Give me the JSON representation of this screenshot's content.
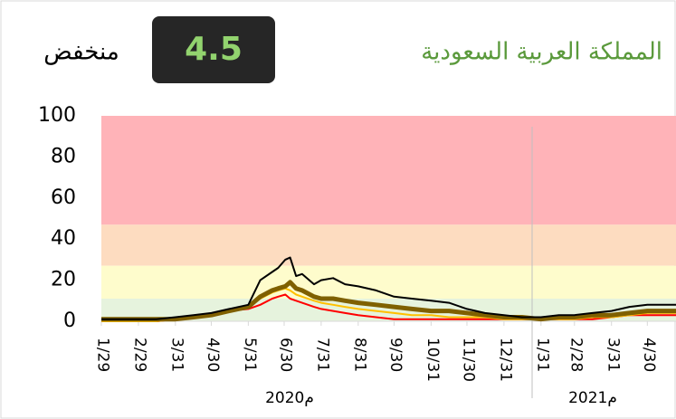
{
  "chart_data": {
    "type": "line",
    "title": "المملكة العربية السعودية",
    "indicator": {
      "value": 4.5,
      "label": "منخفض"
    },
    "year_labels": [
      "2020م",
      "2021م"
    ],
    "ylim": [
      0,
      100
    ],
    "yticks": [
      0,
      20,
      40,
      60,
      80,
      100
    ],
    "xlim": [
      "2020-01-29",
      "2021-05-24"
    ],
    "xticks": [
      {
        "value": "2020-01-29",
        "label": "1/29"
      },
      {
        "value": "2020-02-29",
        "label": "2/29"
      },
      {
        "value": "2020-03-31",
        "label": "3/31"
      },
      {
        "value": "2020-04-30",
        "label": "4/30"
      },
      {
        "value": "2020-05-31",
        "label": "5/31"
      },
      {
        "value": "2020-06-30",
        "label": "6/30"
      },
      {
        "value": "2020-07-31",
        "label": "7/31"
      },
      {
        "value": "2020-08-31",
        "label": "8/31"
      },
      {
        "value": "2020-09-30",
        "label": "9/30"
      },
      {
        "value": "2020-10-31",
        "label": "10/31"
      },
      {
        "value": "2020-11-30",
        "label": "11/30"
      },
      {
        "value": "2020-12-31",
        "label": "12/31"
      },
      {
        "value": "2021-01-31",
        "label": "1/31"
      },
      {
        "value": "2021-02-28",
        "label": "2/28"
      },
      {
        "value": "2021-03-31",
        "label": "3/31"
      },
      {
        "value": "2021-04-30",
        "label": "4/30"
      }
    ],
    "bands": [
      {
        "from": 47,
        "to": 100,
        "color": "#ffb3b8"
      },
      {
        "from": 27,
        "to": 47,
        "color": "#fddcc0"
      },
      {
        "from": 11,
        "to": 27,
        "color": "#fefccc"
      },
      {
        "from": 0,
        "to": 11,
        "color": "#e6f3dd"
      }
    ],
    "x": [
      "2020-01-29",
      "2020-02-29",
      "2020-03-15",
      "2020-03-31",
      "2020-04-15",
      "2020-04-30",
      "2020-05-15",
      "2020-05-31",
      "2020-06-10",
      "2020-06-20",
      "2020-06-25",
      "2020-07-01",
      "2020-07-05",
      "2020-07-10",
      "2020-07-15",
      "2020-07-25",
      "2020-07-31",
      "2020-08-10",
      "2020-08-20",
      "2020-08-31",
      "2020-09-15",
      "2020-09-30",
      "2020-10-15",
      "2020-10-31",
      "2020-11-15",
      "2020-11-30",
      "2020-12-15",
      "2020-12-31",
      "2021-01-15",
      "2021-01-31",
      "2021-02-15",
      "2021-02-28",
      "2021-03-15",
      "2021-03-31",
      "2021-04-15",
      "2021-04-30",
      "2021-05-24"
    ],
    "series": [
      {
        "color": "#ff0000",
        "width": 2,
        "values": [
          0,
          0,
          0,
          1,
          2,
          3,
          5,
          6,
          8,
          11,
          12,
          13,
          11,
          10,
          9,
          7,
          6,
          5,
          4,
          3,
          2,
          1,
          1,
          1,
          1,
          1,
          1,
          1,
          1,
          1,
          1,
          1,
          1,
          2,
          3,
          3,
          3
        ]
      },
      {
        "color": "#ffc000",
        "width": 2,
        "values": [
          0,
          0,
          0,
          1,
          2,
          3,
          5,
          7,
          11,
          14,
          15,
          16,
          15,
          13,
          12,
          10,
          9,
          8,
          7,
          6,
          5,
          4,
          3,
          3,
          2,
          2,
          2,
          1,
          1,
          1,
          1,
          1,
          2,
          2,
          3,
          4,
          4
        ]
      },
      {
        "color": "#7f6000",
        "width": 5,
        "values": [
          1,
          1,
          1,
          1,
          2,
          3,
          5,
          7,
          12,
          15,
          16,
          17,
          19,
          16,
          15,
          12,
          11,
          11,
          10,
          9,
          8,
          7,
          6,
          5,
          5,
          4,
          3,
          2,
          2,
          1,
          2,
          2,
          3,
          3,
          4,
          5,
          5
        ]
      },
      {
        "color": "#000000",
        "width": 2,
        "values": [
          1,
          1,
          1,
          2,
          3,
          4,
          6,
          8,
          20,
          24,
          26,
          30,
          31,
          22,
          23,
          18,
          20,
          21,
          18,
          17,
          15,
          12,
          11,
          10,
          9,
          6,
          4,
          3,
          2,
          2,
          3,
          3,
          4,
          5,
          7,
          8,
          8
        ]
      }
    ]
  }
}
